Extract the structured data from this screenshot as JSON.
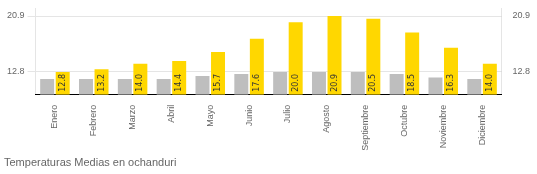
{
  "chart_data": {
    "type": "bar",
    "title": "Temperaturas Medias en ochanduri",
    "categories": [
      "Enero",
      "Febrero",
      "Marzo",
      "Abril",
      "Mayo",
      "Junio",
      "Julio",
      "Agosto",
      "Septiembre",
      "Octubre",
      "Noviembre",
      "Diciembre"
    ],
    "series": [
      {
        "color": "#BEBEBE",
        "values": [
          11.8,
          11.8,
          11.8,
          11.8,
          12.2,
          12.5,
          12.8,
          12.8,
          12.8,
          12.5,
          12.0,
          11.8
        ]
      },
      {
        "color": "#FFD700",
        "values": [
          12.8,
          13.2,
          14.0,
          14.4,
          15.7,
          17.6,
          20.0,
          20.9,
          20.5,
          18.5,
          16.3,
          14.0
        ],
        "value_labels": [
          "12.8",
          "13.2",
          "14.0",
          "14.4",
          "15.7",
          "17.6",
          "20.0",
          "20.9",
          "20.5",
          "18.5",
          "16.3",
          "14.0"
        ],
        "data_labels": true
      }
    ],
    "ylim": [
      9.5,
      22.0
    ],
    "yticks": [
      12.8,
      20.9
    ],
    "y2lim": [
      9.5,
      22.0
    ],
    "y2ticks": [
      12.8,
      20.9
    ],
    "grid": true
  }
}
